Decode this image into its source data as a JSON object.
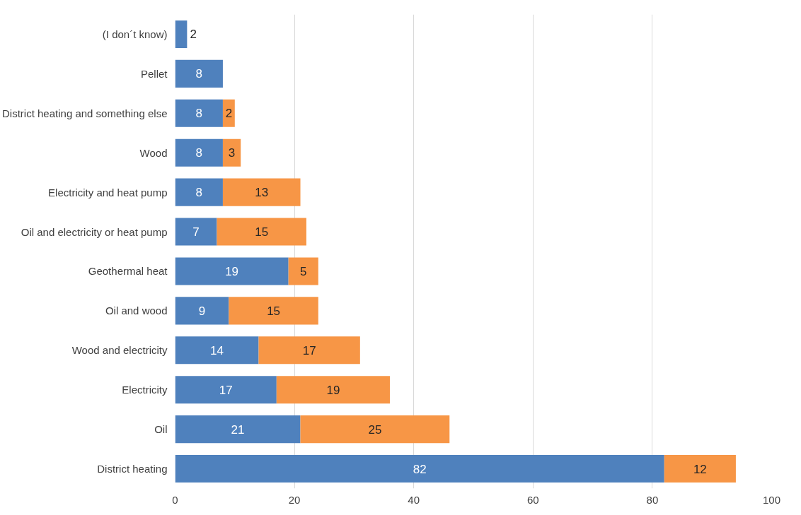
{
  "chart_data": {
    "type": "bar",
    "orientation": "horizontal",
    "stacked": true,
    "data_labels": true,
    "grid": "x",
    "categories": [
      "(I don´t know)",
      "Pellet",
      "District heating and something else",
      "Wood",
      "Electricity and heat pump",
      "Oil and electricity or heat pump",
      "Geothermal heat",
      "Oil and wood",
      "Wood and electricity",
      "Electricity",
      "Oil",
      "District heating"
    ],
    "series": [
      {
        "color": "#4f81bd",
        "values": [
          2,
          8,
          8,
          8,
          8,
          7,
          19,
          9,
          14,
          17,
          21,
          82
        ]
      },
      {
        "color": "#f79646",
        "values": [
          null,
          null,
          2,
          3,
          13,
          15,
          5,
          15,
          17,
          19,
          25,
          12
        ]
      }
    ],
    "xlim": [
      0,
      100
    ],
    "xticks": [
      0,
      20,
      40,
      60,
      80,
      100
    ]
  }
}
